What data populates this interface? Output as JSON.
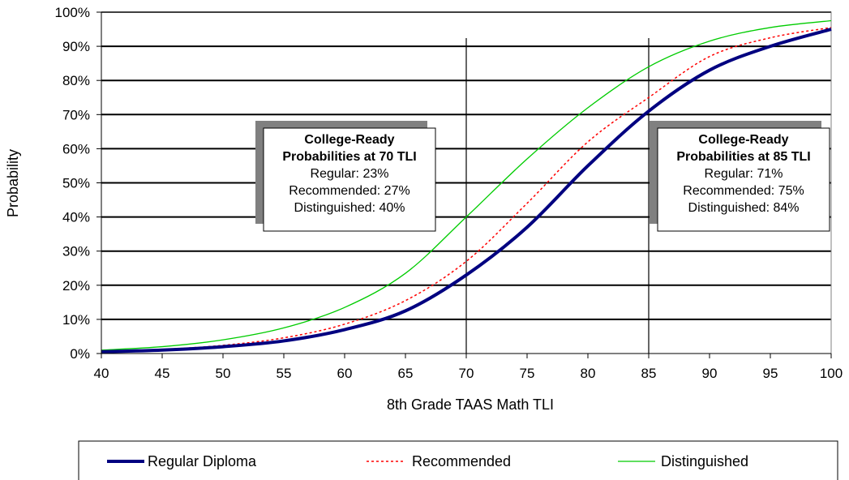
{
  "chart_data": {
    "type": "line",
    "xlabel": "8th Grade TAAS Math TLI",
    "ylabel": "Probability",
    "xlim": [
      40,
      100
    ],
    "ylim": [
      0,
      100
    ],
    "x_ticks": [
      "40",
      "45",
      "50",
      "55",
      "60",
      "65",
      "70",
      "75",
      "80",
      "85",
      "90",
      "95",
      "100"
    ],
    "y_ticks": [
      "0%",
      "10%",
      "20%",
      "30%",
      "40%",
      "50%",
      "60%",
      "70%",
      "80%",
      "90%",
      "100%"
    ],
    "grid": "horizontal",
    "reference_lines_x": [
      70,
      85
    ],
    "x": [
      40,
      45,
      50,
      55,
      60,
      65,
      70,
      75,
      80,
      85,
      90,
      95,
      100
    ],
    "series": [
      {
        "name": "Regular Diploma",
        "color": "#000080",
        "style": "solid-thick",
        "values": [
          0.5,
          1.0,
          2.0,
          3.7,
          7.0,
          12.5,
          23,
          37,
          55,
          71,
          83,
          90,
          95
        ]
      },
      {
        "name": "Recommended",
        "color": "#ff0000",
        "style": "dotted",
        "values": [
          0.6,
          1.2,
          2.4,
          4.6,
          8.6,
          15.5,
          27,
          44,
          62,
          75,
          87,
          92.5,
          95.5
        ]
      },
      {
        "name": "Distinguished",
        "color": "#00cc00",
        "style": "solid-thin",
        "values": [
          1.0,
          2.0,
          4.0,
          7.5,
          13.5,
          23.5,
          40,
          57,
          72,
          84,
          91.5,
          95.5,
          97.5
        ]
      }
    ],
    "legend_position": "bottom",
    "annotations": [
      {
        "at_x": 70,
        "title_lines": [
          "College-Ready",
          "Probabilities at 70 TLI"
        ],
        "lines": [
          "Regular: 23%",
          "Recommended: 27%",
          "Distinguished: 40%"
        ]
      },
      {
        "at_x": 85,
        "title_lines": [
          "College-Ready",
          "Probabilities at 85 TLI"
        ],
        "lines": [
          "Regular: 71%",
          "Recommended: 75%",
          "Distinguished: 84%"
        ]
      }
    ]
  }
}
